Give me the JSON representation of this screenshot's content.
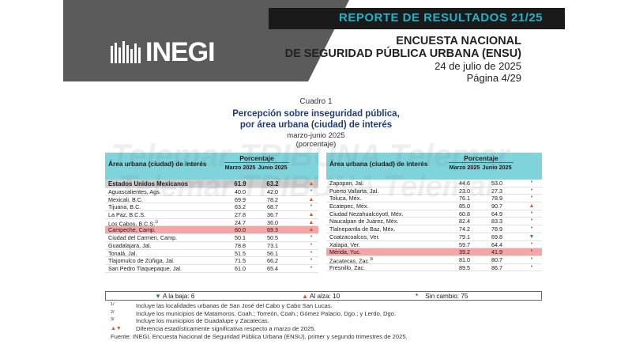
{
  "header": {
    "report_label": "REPORTE DE RESULTADOS 21/25",
    "logo_text": "INEGI",
    "survey_line1": "ENCUESTA NACIONAL",
    "survey_line2": "DE SEGURIDAD PÚBLICA URBANA (ENSU)",
    "date": "24 de julio de 2025",
    "page": "Página 4/29"
  },
  "cuadro": {
    "number": "Cuadro 1",
    "title_line1": "Percepción sobre inseguridad pública,",
    "title_line2": "por área urbana (ciudad) de interés",
    "period": "marzo-junio 2025",
    "unit": "(porcentaje)"
  },
  "table_headers": {
    "area": "Área urbana (ciudad) de interés",
    "porcentaje": "Porcentaje",
    "col1": "Marzo 2025",
    "col2": "Junio 2025"
  },
  "national": {
    "name": "Estados Unidos Mexicanos",
    "v1": "61.9",
    "v2": "63.2",
    "mark": "▲"
  },
  "left_rows": [
    {
      "name": "Aguascalientes, Ags.",
      "v1": "40.0",
      "v2": "42.0",
      "mark": "*"
    },
    {
      "name": "Mexicali, B.C.",
      "v1": "69.9",
      "v2": "78.2",
      "mark": "▲"
    },
    {
      "name": "Tijuana, B.C.",
      "v1": "63.2",
      "v2": "68.7",
      "mark": "*"
    },
    {
      "name": "La Paz, B.C.S.",
      "v1": "27.8",
      "v2": "36.7",
      "mark": "▲"
    },
    {
      "name": "Los Cabos, B.C.S.",
      "sup": "1/",
      "v1": "24.7",
      "v2": "36.0",
      "mark": "▲"
    },
    {
      "name": "Campeche, Camp.",
      "v1": "60.0",
      "v2": "69.3",
      "mark": "▲",
      "highlight": true
    },
    {
      "name": "Ciudad del Carmen, Camp.",
      "v1": "50.1",
      "v2": "50.5",
      "mark": "*"
    },
    {
      "name": "Guadalajara, Jal.",
      "v1": "78.8",
      "v2": "73.1",
      "mark": "*"
    },
    {
      "name": "Tonalá, Jal.",
      "v1": "51.5",
      "v2": "56.1",
      "mark": "*"
    },
    {
      "name": "Tlajomulco de Zúñiga, Jal.",
      "v1": "71.5",
      "v2": "66.2",
      "mark": "*"
    },
    {
      "name": "San Pedro Tlaquepaque, Jal.",
      "v1": "61.0",
      "v2": "65.4",
      "mark": "*"
    }
  ],
  "right_rows": [
    {
      "name": "Zapopan, Jal.",
      "v1": "44.6",
      "v2": "53.0",
      "mark": "*"
    },
    {
      "name": "Puerto Vallarta, Jal.",
      "v1": "23.0",
      "v2": "27.3",
      "mark": "*"
    },
    {
      "name": "Toluca, Méx.",
      "v1": "76.1",
      "v2": "78.9",
      "mark": "*"
    },
    {
      "name": "Ecatepec, Méx.",
      "v1": "85.0",
      "v2": "90.7",
      "mark": "▲"
    },
    {
      "name": "Ciudad Nezahualcóyotl, Méx.",
      "v1": "60.8",
      "v2": "64.9",
      "mark": "*"
    },
    {
      "name": "Naucalpan de Juárez, Méx.",
      "v1": "82.4",
      "v2": "83.3",
      "mark": "*"
    },
    {
      "name": "Tlalnepantla de Baz, Méx.",
      "v1": "74.2",
      "v2": "78.9",
      "mark": "*"
    },
    {
      "name": "Coatzacoalcos, Ver.",
      "v1": "79.1",
      "v2": "69.8",
      "mark": "▼"
    },
    {
      "name": "Xalapa, Ver.",
      "v1": "59.7",
      "v2": "64.4",
      "mark": "*"
    },
    {
      "name": "Mérida, Yuc.",
      "v1": "39.2",
      "v2": "41.9",
      "mark": "*",
      "highlight": true
    },
    {
      "name": "Zacatecas, Zac.",
      "sup": "3/",
      "v1": "81.0",
      "v2": "80.7",
      "mark": "*"
    },
    {
      "name": "Fresnillo, Zac.",
      "v1": "89.5",
      "v2": "86.7",
      "mark": "*"
    }
  ],
  "summary": {
    "down": "A la baja: 6",
    "up": "Al alza: 10",
    "nochange": "Sin cambio: 75"
  },
  "notes": [
    {
      "key": "1/",
      "text": "Incluye las localidades urbanas de San José del Cabo y Cabo San Lucas."
    },
    {
      "key": "2/",
      "text": "Incluye los municipios de Matamoros, Coah.; Torreón, Coah.; Gómez Palacio, Dgo.; y Lerdo, Dgo."
    },
    {
      "key": "3/",
      "text": "Incluye los municipios de Guadalupe y Zacatecas."
    },
    {
      "key": "▲▼",
      "text": "Diferencia estadísticamente significativa respecto a marzo de 2025."
    }
  ],
  "source": "Fuente: INEGI. Encuesta Nacional de Seguridad Pública Urbana (ENSU), primer y segundo trimestres de 2025.",
  "watermark": "Telemar TRIBUNA Telemar",
  "colors": {
    "header_bg": "#5b5b5b",
    "accent": "#1cb5c6",
    "table_header": "#7fd4dc",
    "highlight": "#f4a5a5",
    "up": "#d45a25",
    "down": "#2f8a5a"
  }
}
